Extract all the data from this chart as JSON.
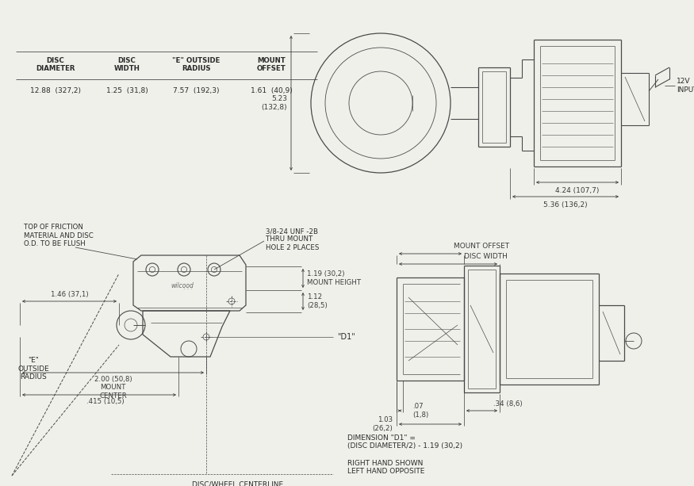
{
  "bg_color": "#f0f0eb",
  "line_color": "#4a4a4a",
  "dim_color": "#3a3a3a",
  "text_color": "#2a2a2a",
  "table_headers": [
    "DISC\nDIAMETER",
    "DISC\nWIDTH",
    "\"E\" OUTSIDE\nRADIUS",
    "MOUNT\nOFFSET"
  ],
  "table_values": [
    "12.88  (327,2)",
    "1.25  (31,8)",
    "7.57  (192,3)",
    "1.61  (40,9)"
  ],
  "top_right": {
    "height_label": "5.23\n(132,8)",
    "width1_label": "4.24 (107,7)",
    "width2_label": "5.36 (136,2",
    "input_label": "12V\nINPUT"
  },
  "bottom_left": {
    "mount_thread": "3/8-24 UNF -2B\nTHRU MOUNT\nHOLE 2 PLACES",
    "mount_height": "1.19 (30,2)\nMOUNT HEIGHT",
    "dim_112": "1.12\n(28,5)",
    "dim_146": "1.46 (37,1)",
    "mount_center": "2.00 (50,8)\nMOUNT\nCENTER",
    "d1_label": "\"D1\"",
    "dim_415": ".415 (10,5)",
    "centerline_label": "DISC/WHEEL CENTERLINE",
    "friction_note": "TOP OF FRICTION\nMATERIAL AND DISC\nO.D. TO BE FLUSH",
    "e_radius": "\"E\"\nOUTSIDE\nRADIUS"
  },
  "bottom_right": {
    "mount_offset": "MOUNT OFFSET",
    "disc_width": "DISC WIDTH",
    "dim_07": ".07\n(1,8)",
    "dim_103": "1.03\n(26,2)",
    "dim_34": ".34 (8,6)",
    "dim_d1": "DIMENSION \"D1\" =\n(DISC DIAMETER/2) - 1.19 (30,2)",
    "hand_note": "RIGHT HAND SHOWN\nLEFT HAND OPPOSITE"
  }
}
